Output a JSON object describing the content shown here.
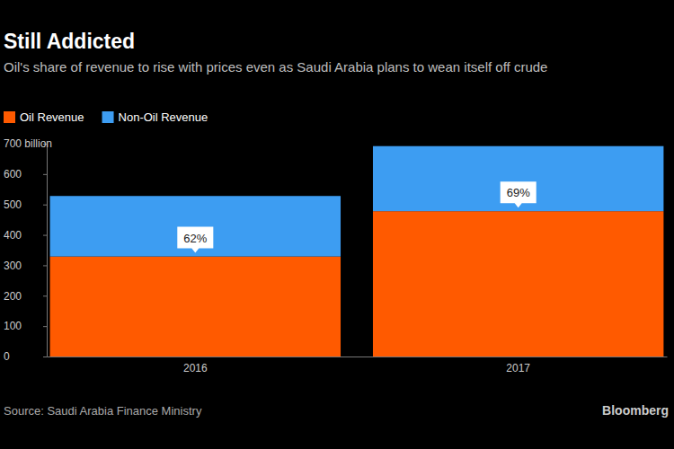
{
  "chart_data": {
    "type": "bar",
    "stacked": true,
    "title": "Still Addicted",
    "subtitle": "Oil's share of revenue to rise with prices even as Saudi Arabia plans to wean itself off crude",
    "categories": [
      "2016",
      "2017"
    ],
    "series": [
      {
        "name": "Oil Revenue",
        "color": "#ff5a00",
        "values": [
          329,
          478
        ]
      },
      {
        "name": "Non-Oil Revenue",
        "color": "#3d9df2",
        "values": [
          199,
          214
        ]
      }
    ],
    "annotations": [
      "62%",
      "69%"
    ],
    "ylim": [
      0,
      700
    ],
    "yticks": [
      0,
      100,
      200,
      300,
      400,
      500,
      600,
      {
        "value": 700,
        "label": "700 billion"
      }
    ],
    "grid": false,
    "legend": "top-left",
    "source": "Source: Saudi Arabia Finance Ministry",
    "credit": "Bloomberg"
  }
}
